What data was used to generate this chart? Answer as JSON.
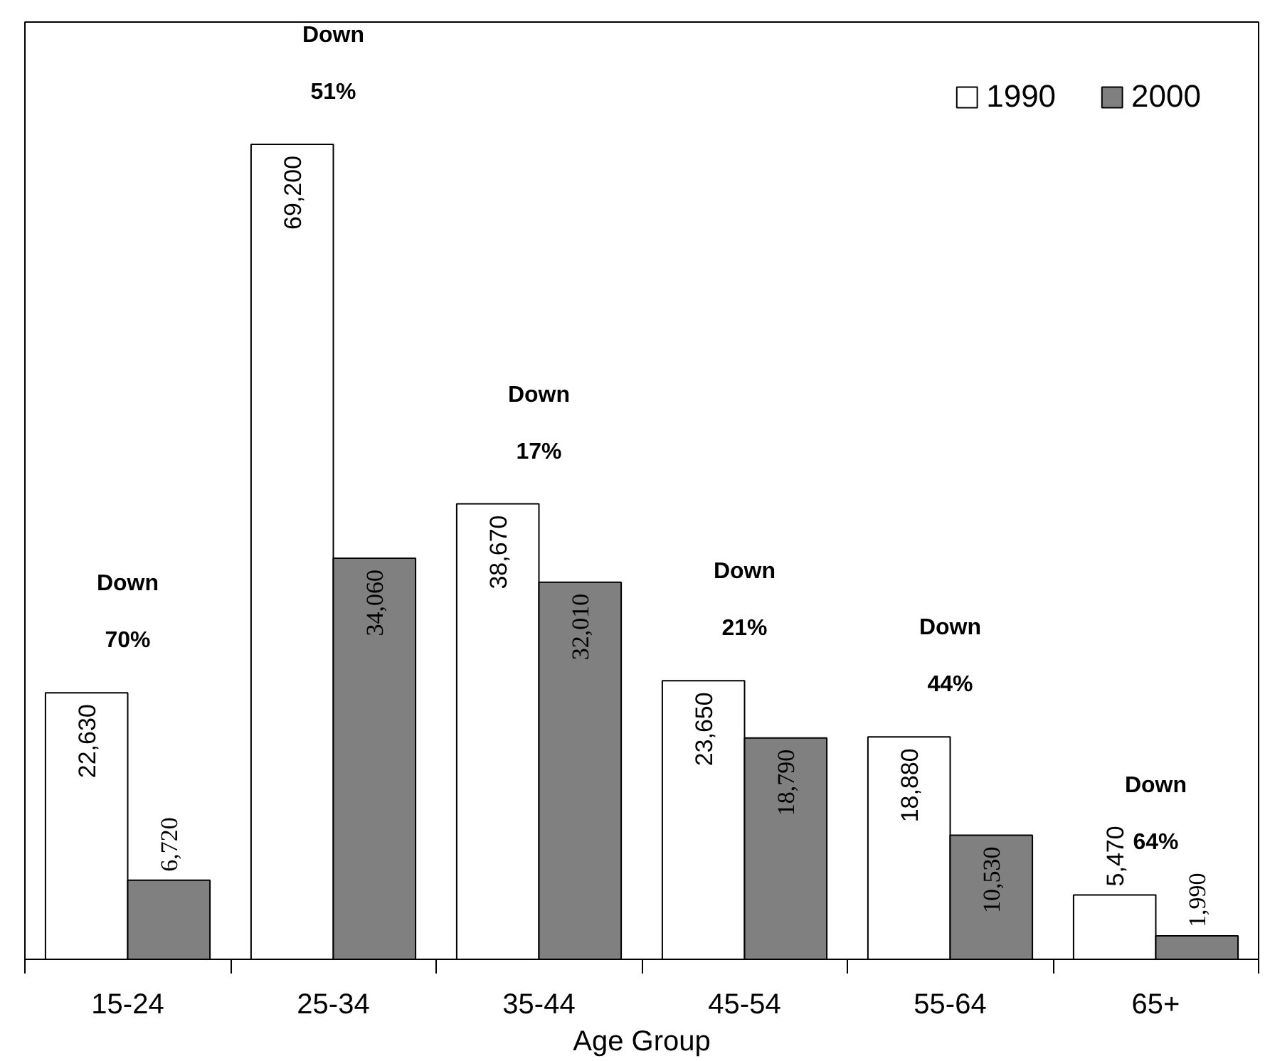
{
  "chart_data": {
    "type": "bar",
    "xlabel": "Age Group",
    "categories": [
      "15-24",
      "25-34",
      "35-44",
      "45-54",
      "55-64",
      "65+"
    ],
    "series": [
      {
        "name": "1990",
        "color": "#ffffff",
        "values": [
          22630,
          69200,
          38670,
          23650,
          18880,
          5470
        ],
        "value_labels": [
          "22,630",
          "69,200",
          "38,670",
          "23,650",
          "18,880",
          "5,470"
        ]
      },
      {
        "name": "2000",
        "color": "#808080",
        "values": [
          6720,
          34060,
          32010,
          18790,
          10530,
          1990
        ],
        "value_labels": [
          "6,720",
          "34,060",
          "32,010",
          "18,790",
          "10,530",
          "1,990"
        ]
      }
    ],
    "tick_labels": "x",
    "annotations": [
      "Down",
      "70%",
      "Down",
      "51%",
      "Down",
      "17%",
      "Down",
      "21%",
      "Down",
      "44%",
      "Down",
      "64%"
    ],
    "legend": "top right",
    "grid": false
  }
}
